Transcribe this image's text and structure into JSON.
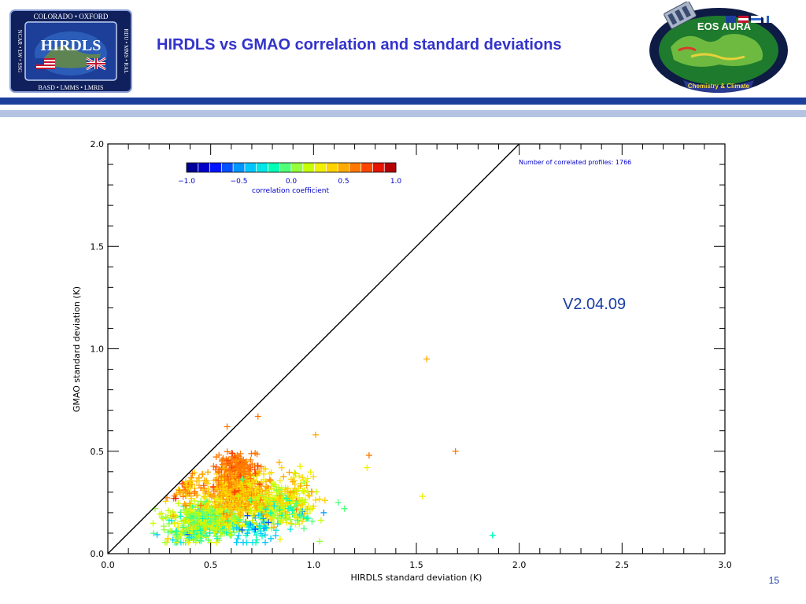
{
  "slide": {
    "title": "HIRDLS vs GMAO  correlation and standard deviations",
    "version_label": "V2.04.09",
    "page_number": "15"
  },
  "logo_left": {
    "top_text": "COLORADO • OXFORD",
    "name": "HIRDLS",
    "left_text": "NCAR • LW • SSG",
    "right_text": "RDU • MMS • RAL",
    "bottom_text": "BASD • LMMS • LMRIS",
    "colors": {
      "frame": "#10205c",
      "field": "#1d3f9a",
      "text": "#ffffff"
    }
  },
  "logo_right": {
    "name": "EOS AURA",
    "ribbon_text": "Chemistry & Climate",
    "colors": {
      "ring": "#0d1b45",
      "ocean": "#1e7a2c",
      "land": "#7cc544",
      "ribbon": "#2a3a90",
      "ribbon_text": "#f7d93b"
    }
  },
  "chart_data": {
    "type": "scatter",
    "xlabel": "HIRDLS standard deviation (K)",
    "ylabel": "GMAO standard deviation (K)",
    "xlim": [
      0.0,
      3.0
    ],
    "ylim": [
      0.0,
      2.0
    ],
    "xticks": [
      "0.0",
      "0.5",
      "1.0",
      "1.5",
      "2.0",
      "2.5",
      "3.0"
    ],
    "yticks": [
      "0.0",
      "0.5",
      "1.0",
      "1.5",
      "2.0"
    ],
    "grid": false,
    "marker": "plus",
    "reference_line": {
      "x": [
        0.0,
        2.0
      ],
      "y": [
        0.0,
        2.0
      ],
      "color": "#000000"
    },
    "annotation": "Number of correlated profiles: 1766",
    "colorbar": {
      "label": "correlation coefficient",
      "range": [
        -1.0,
        1.0
      ],
      "ticks": [
        "-1.0",
        "-0.5",
        "0.0",
        "0.5",
        "1.0"
      ],
      "colors": [
        "#000096",
        "#0000c8",
        "#0014ff",
        "#0050ff",
        "#0096ff",
        "#00c8ff",
        "#00e6e6",
        "#00ffb4",
        "#50ff78",
        "#96ff3c",
        "#c8ff00",
        "#f0f000",
        "#ffd200",
        "#ffaa00",
        "#ff7800",
        "#ff4600",
        "#e61400",
        "#b40000"
      ],
      "position": "top-left"
    },
    "series_points": [
      {
        "x": 1.55,
        "y": 0.95,
        "r": 0.55
      },
      {
        "x": 0.73,
        "y": 0.67,
        "r": 0.65
      },
      {
        "x": 0.58,
        "y": 0.62,
        "r": 0.65
      },
      {
        "x": 1.69,
        "y": 0.5,
        "r": 0.6
      },
      {
        "x": 1.27,
        "y": 0.48,
        "r": 0.65
      },
      {
        "x": 1.26,
        "y": 0.42,
        "r": 0.3
      },
      {
        "x": 1.53,
        "y": 0.28,
        "r": 0.25
      },
      {
        "x": 1.87,
        "y": 0.09,
        "r": -0.2
      },
      {
        "x": 1.01,
        "y": 0.58,
        "r": 0.5
      },
      {
        "x": 1.05,
        "y": 0.2,
        "r": -0.45
      },
      {
        "x": 1.12,
        "y": 0.25,
        "r": -0.05
      },
      {
        "x": 1.03,
        "y": 0.06,
        "r": 0.0
      },
      {
        "x": 1.15,
        "y": 0.22,
        "r": -0.1
      },
      {
        "x": 0.33,
        "y": 0.27,
        "r": 0.8
      },
      {
        "x": 0.23,
        "y": 0.22,
        "r": 0.1
      },
      {
        "x": 0.9,
        "y": 0.28,
        "r": 0.3
      }
    ],
    "clusters": [
      {
        "count": 560,
        "x_mean": 0.5,
        "x_sd": 0.13,
        "y_mean": 0.17,
        "y_sd": 0.055,
        "r_mean": 0.1,
        "r_sd": 0.22
      },
      {
        "count": 480,
        "x_mean": 0.63,
        "x_sd": 0.11,
        "y_mean": 0.3,
        "y_sd": 0.07,
        "r_mean": 0.45,
        "r_sd": 0.15
      },
      {
        "count": 150,
        "x_mean": 0.62,
        "x_sd": 0.07,
        "y_mean": 0.42,
        "y_sd": 0.05,
        "r_mean": 0.62,
        "r_sd": 0.07
      },
      {
        "count": 220,
        "x_mean": 0.8,
        "x_sd": 0.09,
        "y_mean": 0.24,
        "y_sd": 0.07,
        "r_mean": 0.22,
        "r_sd": 0.22
      },
      {
        "count": 90,
        "x_mean": 0.92,
        "x_sd": 0.08,
        "y_mean": 0.3,
        "y_sd": 0.08,
        "r_mean": 0.32,
        "r_sd": 0.2
      },
      {
        "count": 60,
        "x_mean": 0.4,
        "x_sd": 0.07,
        "y_mean": 0.33,
        "y_sd": 0.06,
        "r_mean": 0.5,
        "r_sd": 0.12
      },
      {
        "count": 90,
        "x_mean": 0.4,
        "x_sd": 0.09,
        "y_mean": 0.09,
        "y_sd": 0.03,
        "r_mean": 0.0,
        "r_sd": 0.3
      },
      {
        "count": 50,
        "x_mean": 0.72,
        "x_sd": 0.07,
        "y_mean": 0.12,
        "y_sd": 0.05,
        "r_mean": -0.3,
        "r_sd": 0.18
      },
      {
        "count": 50,
        "x_mean": 0.88,
        "x_sd": 0.08,
        "y_mean": 0.2,
        "y_sd": 0.06,
        "r_mean": -0.05,
        "r_sd": 0.25
      }
    ],
    "random_seed": 20090715
  }
}
